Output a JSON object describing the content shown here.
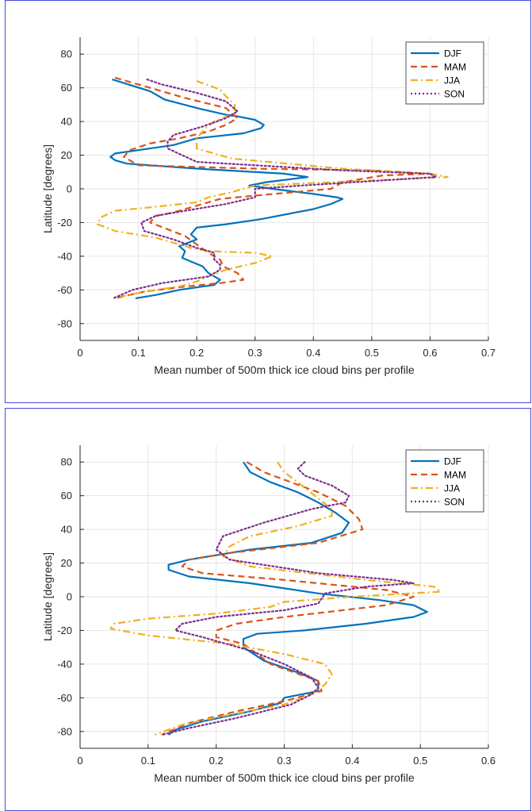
{
  "colors": {
    "DJF": "#0072BD",
    "MAM": "#D95319",
    "JJA": "#EDB120",
    "SON": "#7E2F8E",
    "grid": "#e6e6e6",
    "axis": "#262626",
    "frame": "#4a4ad8"
  },
  "chart_data": [
    {
      "type": "line",
      "xlabel": "Mean number of 500m thick ice cloud bins per profile",
      "ylabel": "Latitude [degrees]",
      "xlim": [
        0,
        0.7
      ],
      "ylim": [
        -90,
        90
      ],
      "xticks": [
        0,
        0.1,
        0.2,
        0.3,
        0.4,
        0.5,
        0.6,
        0.7
      ],
      "xtick_labels": [
        "0",
        "0.1",
        "0.2",
        "0.3",
        "0.4",
        "0.5",
        "0.6",
        "0.7"
      ],
      "yticks": [
        -80,
        -60,
        -40,
        -20,
        0,
        20,
        40,
        60,
        80
      ],
      "ytick_labels": [
        "-80",
        "-60",
        "-40",
        "-20",
        "0",
        "20",
        "40",
        "60",
        "80"
      ],
      "grid": true,
      "legend_position": "top-right",
      "series": [
        {
          "name": "DJF",
          "style": "solid",
          "x": [
            0.055,
            0.12,
            0.145,
            0.2,
            0.25,
            0.27,
            0.3,
            0.315,
            0.31,
            0.28,
            0.2,
            0.16,
            0.1,
            0.06,
            0.052,
            0.06,
            0.08,
            0.2,
            0.35,
            0.39,
            0.32,
            0.29,
            0.33,
            0.4,
            0.44,
            0.45,
            0.43,
            0.4,
            0.31,
            0.25,
            0.2,
            0.19,
            0.2,
            0.17,
            0.18,
            0.175,
            0.21,
            0.22,
            0.24,
            0.23,
            0.17,
            0.13,
            0.095
          ],
          "y": [
            65,
            58,
            53,
            48,
            44,
            43,
            41,
            38,
            36,
            33,
            30,
            26,
            23,
            21,
            19,
            17,
            15,
            12,
            9,
            7,
            4,
            2,
            0,
            -3,
            -5,
            -6,
            -9,
            -12,
            -18,
            -21,
            -23,
            -27,
            -30,
            -34,
            -37,
            -41,
            -46,
            -50,
            -54,
            -57,
            -60,
            -63,
            -65
          ]
        },
        {
          "name": "MAM",
          "style": "dashed",
          "x": [
            0.06,
            0.12,
            0.18,
            0.25,
            0.27,
            0.25,
            0.22,
            0.17,
            0.12,
            0.085,
            0.075,
            0.1,
            0.3,
            0.5,
            0.6,
            0.52,
            0.45,
            0.43,
            0.3,
            0.24,
            0.2,
            0.16,
            0.13,
            0.12,
            0.15,
            0.18,
            0.2,
            0.22,
            0.24,
            0.245,
            0.27,
            0.28,
            0.24,
            0.18,
            0.11,
            0.06
          ],
          "y": [
            66,
            60,
            54,
            48,
            42,
            38,
            34,
            30,
            27,
            23,
            19,
            14,
            12,
            11,
            9,
            8,
            4,
            0,
            -4,
            -6,
            -10,
            -14,
            -16,
            -20,
            -24,
            -28,
            -33,
            -38,
            -42,
            -46,
            -50,
            -54,
            -56,
            -58,
            -61,
            -65
          ]
        },
        {
          "name": "JJA",
          "style": "dashdot",
          "x": [
            0.2,
            0.24,
            0.25,
            0.265,
            0.265,
            0.23,
            0.215,
            0.2,
            0.2,
            0.26,
            0.45,
            0.6,
            0.63,
            0.5,
            0.3,
            0.26,
            0.22,
            0.2,
            0.12,
            0.06,
            0.035,
            0.03,
            0.06,
            0.13,
            0.16,
            0.19,
            0.22,
            0.3,
            0.33,
            0.3,
            0.25,
            0.22,
            0.2,
            0.17,
            0.11,
            0.07
          ],
          "y": [
            64,
            59,
            55,
            50,
            45,
            40,
            36,
            30,
            24,
            18,
            12,
            9,
            7,
            5,
            2,
            -2,
            -5,
            -8,
            -11,
            -13,
            -17,
            -21,
            -25,
            -29,
            -32,
            -35,
            -37,
            -38,
            -40,
            -44,
            -48,
            -52,
            -55,
            -58,
            -61,
            -64
          ]
        },
        {
          "name": "SON",
          "style": "dotted",
          "x": [
            0.115,
            0.14,
            0.2,
            0.25,
            0.27,
            0.25,
            0.21,
            0.16,
            0.15,
            0.15,
            0.2,
            0.45,
            0.6,
            0.61,
            0.38,
            0.3,
            0.3,
            0.25,
            0.18,
            0.13,
            0.105,
            0.11,
            0.16,
            0.2,
            0.23,
            0.23,
            0.24,
            0.24,
            0.22,
            0.14,
            0.09,
            0.057
          ],
          "y": [
            65,
            62,
            57,
            52,
            46,
            42,
            37,
            32,
            28,
            24,
            16,
            11,
            9,
            7,
            2,
            0,
            -5,
            -9,
            -13,
            -16,
            -20,
            -25,
            -30,
            -35,
            -38,
            -42,
            -45,
            -48,
            -52,
            -56,
            -60,
            -65
          ]
        }
      ]
    },
    {
      "type": "line",
      "xlabel": "Mean number of 500m thick ice cloud bins per profile",
      "ylabel": "Latitude [degrees]",
      "xlim": [
        0,
        0.6
      ],
      "ylim": [
        -90,
        90
      ],
      "xticks": [
        0,
        0.1,
        0.2,
        0.3,
        0.4,
        0.5,
        0.6
      ],
      "xtick_labels": [
        "0",
        "0.1",
        "0.2",
        "0.3",
        "0.4",
        "0.5",
        "0.6"
      ],
      "yticks": [
        -80,
        -60,
        -40,
        -20,
        0,
        20,
        40,
        60,
        80
      ],
      "ytick_labels": [
        "-80",
        "-60",
        "-40",
        "-20",
        "0",
        "20",
        "40",
        "60",
        "80"
      ],
      "grid": true,
      "legend_position": "top-right",
      "series": [
        {
          "name": "DJF",
          "style": "solid",
          "x": [
            0.24,
            0.25,
            0.28,
            0.32,
            0.35,
            0.375,
            0.395,
            0.385,
            0.34,
            0.25,
            0.16,
            0.13,
            0.13,
            0.16,
            0.25,
            0.35,
            0.44,
            0.49,
            0.51,
            0.49,
            0.42,
            0.33,
            0.26,
            0.24,
            0.24,
            0.27,
            0.32,
            0.35,
            0.35,
            0.3,
            0.295,
            0.25,
            0.18,
            0.14,
            0.13
          ],
          "y": [
            80,
            74,
            68,
            62,
            56,
            50,
            44,
            38,
            32,
            28,
            22,
            19,
            16,
            12,
            8,
            2,
            -2,
            -5,
            -9,
            -12,
            -16,
            -20,
            -22,
            -25,
            -30,
            -38,
            -45,
            -50,
            -56,
            -60,
            -63,
            -68,
            -74,
            -79,
            -82
          ]
        },
        {
          "name": "MAM",
          "style": "dashed",
          "x": [
            0.245,
            0.27,
            0.31,
            0.35,
            0.39,
            0.41,
            0.415,
            0.35,
            0.22,
            0.16,
            0.15,
            0.18,
            0.3,
            0.45,
            0.49,
            0.45,
            0.3,
            0.23,
            0.2,
            0.2,
            0.24,
            0.26,
            0.28,
            0.35,
            0.355,
            0.3,
            0.23,
            0.16,
            0.12
          ],
          "y": [
            80,
            74,
            68,
            62,
            54,
            46,
            40,
            32,
            26,
            22,
            18,
            14,
            10,
            4,
            0,
            -5,
            -12,
            -16,
            -20,
            -24,
            -28,
            -34,
            -40,
            -50,
            -56,
            -62,
            -68,
            -75,
            -82
          ]
        },
        {
          "name": "JJA",
          "style": "dashdot",
          "x": [
            0.29,
            0.3,
            0.32,
            0.345,
            0.37,
            0.37,
            0.32,
            0.25,
            0.22,
            0.21,
            0.25,
            0.42,
            0.52,
            0.53,
            0.4,
            0.3,
            0.28,
            0.2,
            0.1,
            0.05,
            0.045,
            0.1,
            0.22,
            0.3,
            0.36,
            0.37,
            0.36,
            0.34,
            0.3,
            0.22,
            0.15,
            0.11
          ],
          "y": [
            80,
            74,
            68,
            60,
            52,
            48,
            42,
            36,
            30,
            24,
            18,
            10,
            6,
            3,
            0,
            -3,
            -6,
            -10,
            -13,
            -16,
            -19,
            -23,
            -28,
            -34,
            -40,
            -46,
            -52,
            -58,
            -64,
            -70,
            -76,
            -82
          ]
        },
        {
          "name": "SON",
          "style": "dotted",
          "x": [
            0.33,
            0.32,
            0.33,
            0.37,
            0.395,
            0.39,
            0.34,
            0.27,
            0.21,
            0.2,
            0.22,
            0.35,
            0.46,
            0.49,
            0.42,
            0.36,
            0.35,
            0.3,
            0.2,
            0.15,
            0.14,
            0.18,
            0.25,
            0.3,
            0.34,
            0.35,
            0.34,
            0.31,
            0.23,
            0.16,
            0.12
          ],
          "y": [
            80,
            76,
            72,
            66,
            60,
            56,
            52,
            44,
            36,
            28,
            22,
            14,
            10,
            8,
            6,
            2,
            -4,
            -8,
            -12,
            -16,
            -20,
            -24,
            -32,
            -40,
            -48,
            -54,
            -58,
            -64,
            -72,
            -78,
            -82
          ]
        }
      ]
    }
  ]
}
